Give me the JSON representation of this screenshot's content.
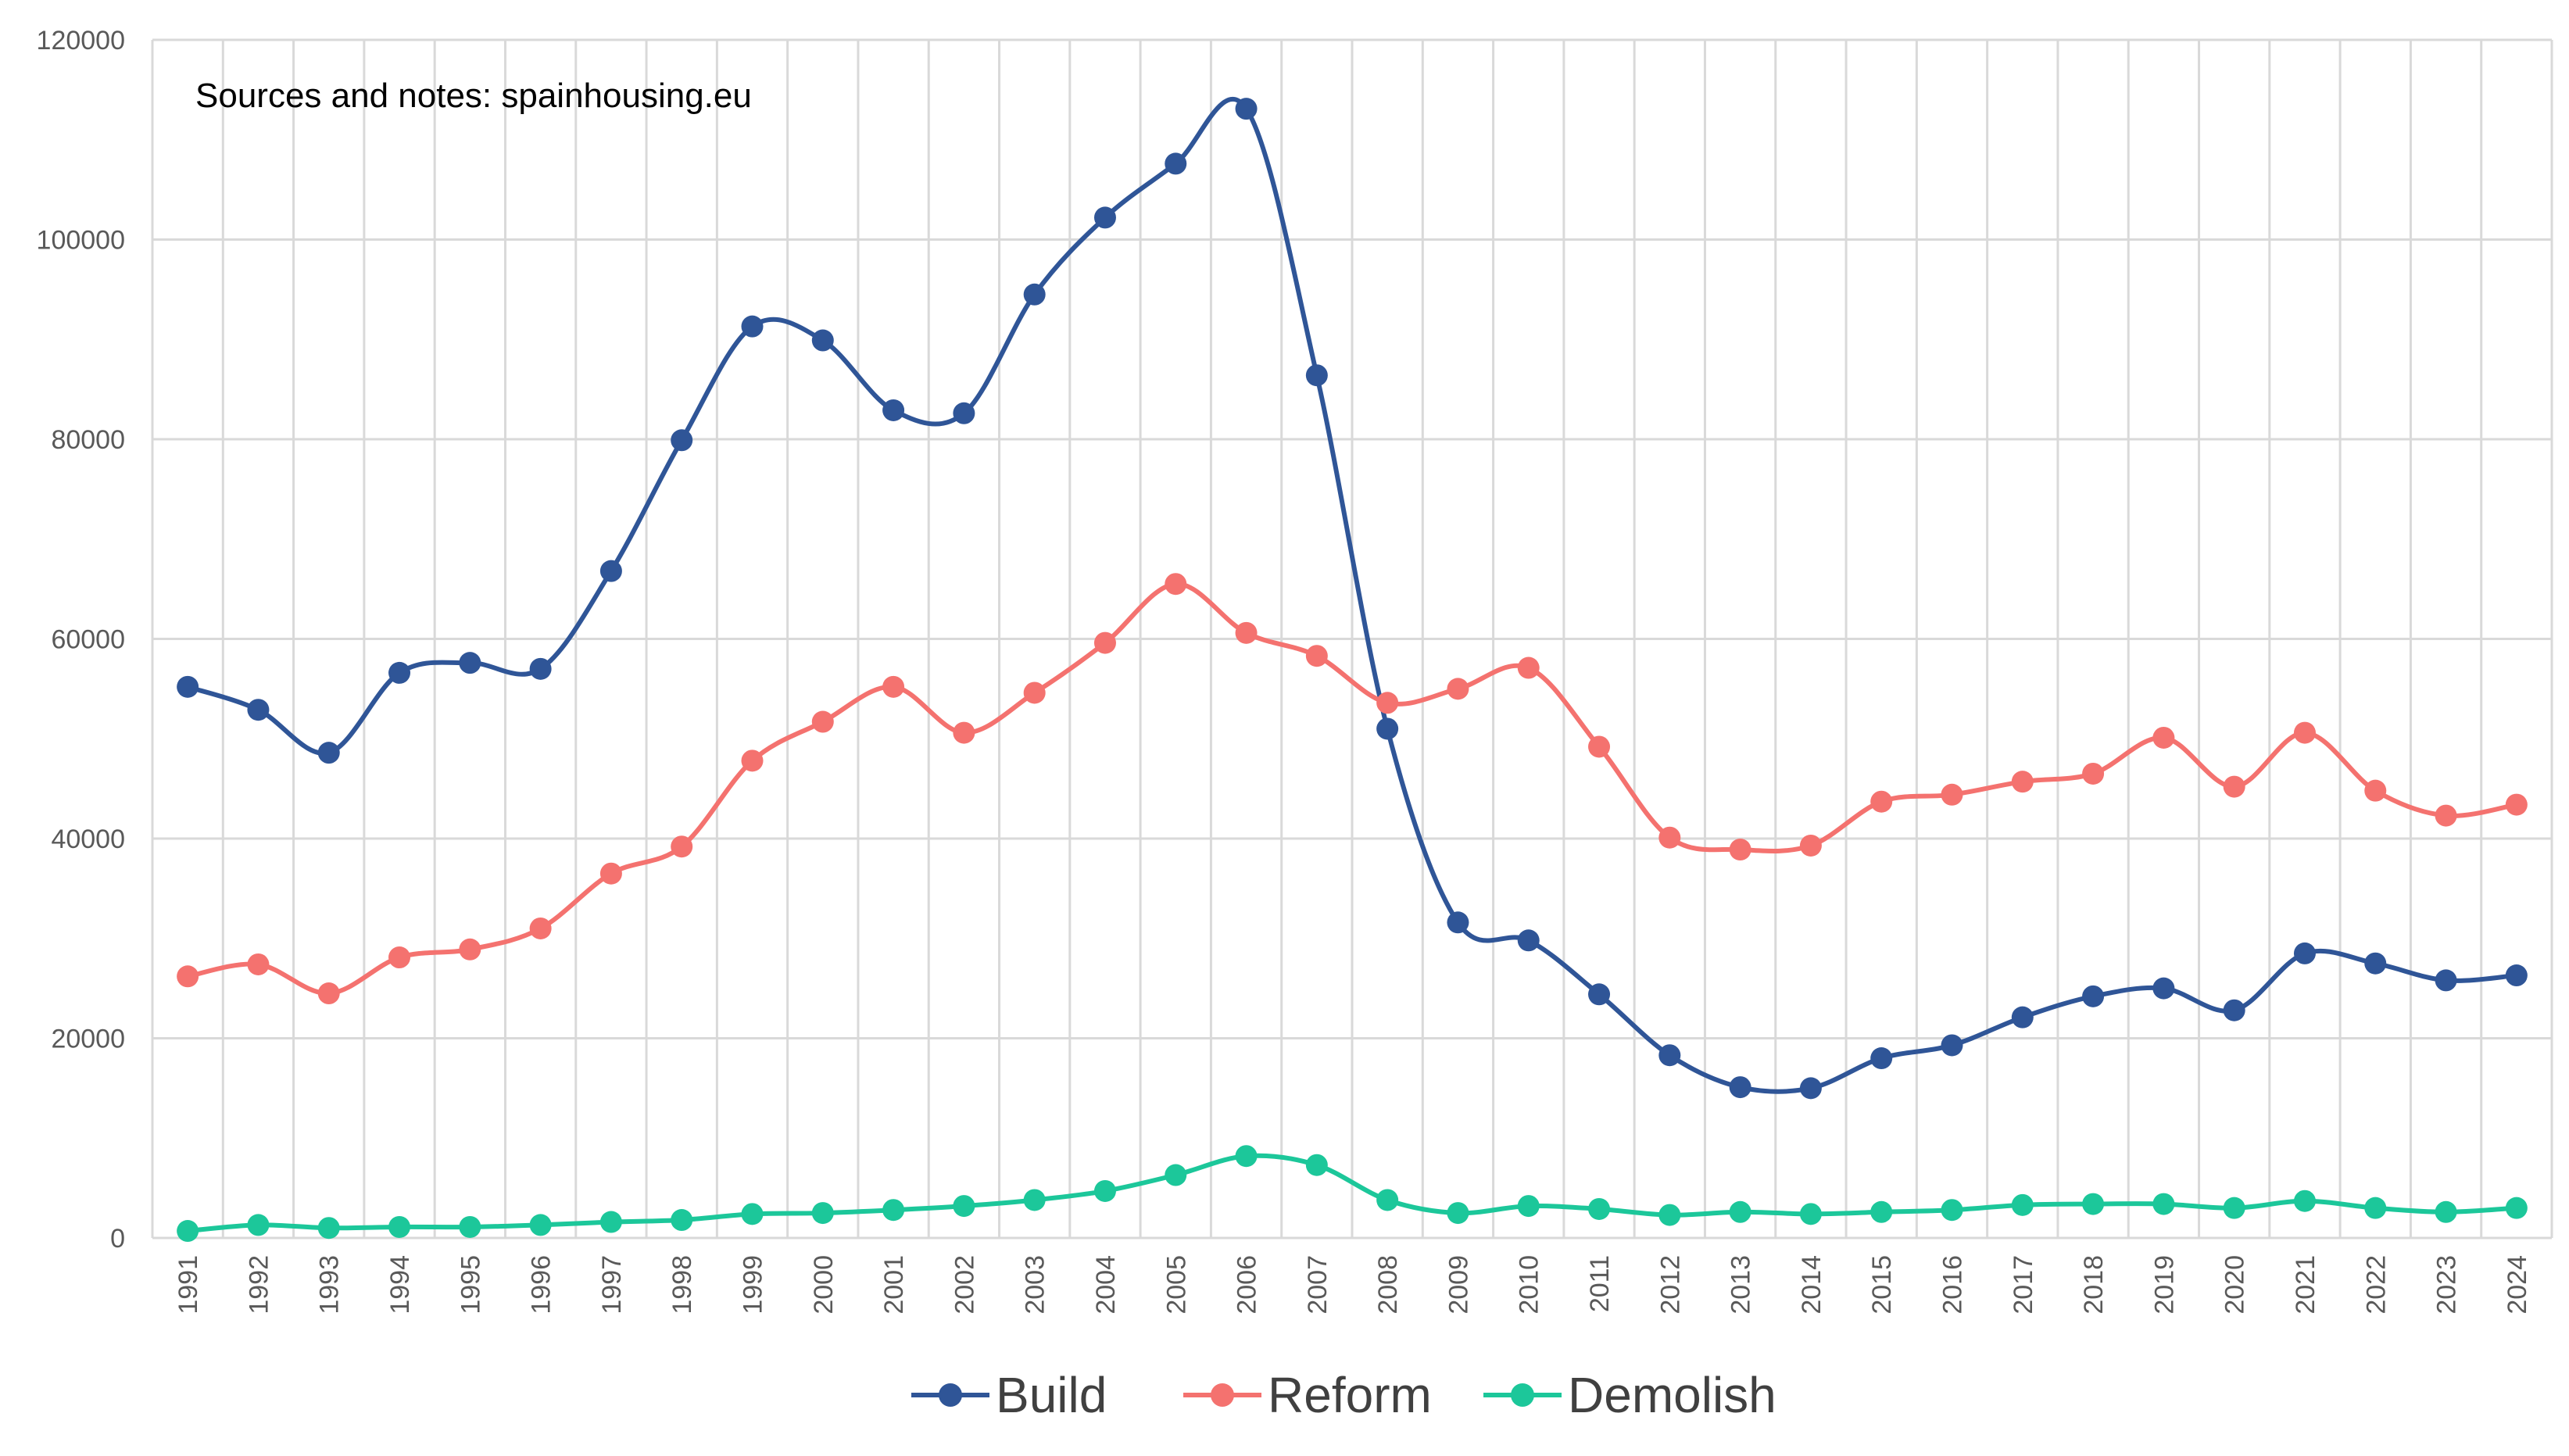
{
  "chart_data": {
    "type": "line",
    "annotation": "Sources and notes: spainhousing.eu",
    "xlabel": "",
    "ylabel": "",
    "ylim": [
      0,
      120000
    ],
    "yticks": [
      0,
      20000,
      40000,
      60000,
      80000,
      100000,
      120000
    ],
    "ytick_labels": [
      "0",
      "20000",
      "40000",
      "60000",
      "80000",
      "100000",
      "120000"
    ],
    "grid": "vertical and horizontal",
    "legend_position": "bottom",
    "categories": [
      "1991",
      "1992",
      "1993",
      "1994",
      "1995",
      "1996",
      "1997",
      "1998",
      "1999",
      "2000",
      "2001",
      "2002",
      "2003",
      "2004",
      "2005",
      "2006",
      "2007",
      "2008",
      "2009",
      "2010",
      "2011",
      "2012",
      "2013",
      "2014",
      "2015",
      "2016",
      "2017",
      "2018",
      "2019",
      "2020",
      "2021",
      "2022",
      "2023",
      "2024"
    ],
    "series": [
      {
        "name": "Build",
        "color": "#2F5597",
        "values": [
          55200,
          52900,
          48600,
          56600,
          57600,
          57000,
          66800,
          79900,
          91300,
          89900,
          82900,
          82600,
          94500,
          102200,
          107600,
          113100,
          86400,
          51000,
          31600,
          29800,
          24400,
          18300,
          15100,
          15000,
          18000,
          19300,
          22100,
          24200,
          25000,
          22800,
          28500,
          27500,
          25800,
          26300
        ]
      },
      {
        "name": "Reform",
        "color": "#F4726F",
        "values": [
          26200,
          27400,
          24500,
          28100,
          28900,
          31000,
          36500,
          39200,
          47800,
          51700,
          55200,
          50600,
          54600,
          59600,
          65500,
          60600,
          58300,
          53600,
          55000,
          57100,
          49200,
          40100,
          38900,
          39300,
          43700,
          44400,
          45700,
          46500,
          50100,
          45200,
          50600,
          44800,
          42300,
          43400
        ]
      },
      {
        "name": "Demolish",
        "color": "#1CC79A",
        "values": [
          700,
          1300,
          1000,
          1100,
          1100,
          1300,
          1600,
          1800,
          2400,
          2500,
          2800,
          3200,
          3800,
          4700,
          6300,
          8200,
          7300,
          3800,
          2500,
          3200,
          2900,
          2300,
          2600,
          2400,
          2600,
          2800,
          3300,
          3400,
          3400,
          3000,
          3700,
          3000,
          2600,
          3000
        ]
      }
    ]
  }
}
